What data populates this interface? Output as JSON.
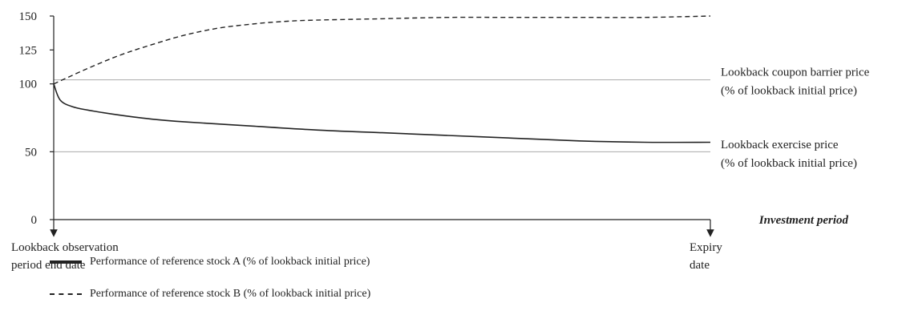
{
  "chart_data": {
    "type": "line",
    "title": "",
    "xlabel": "Investment period",
    "ylabel": "",
    "ylim": [
      0,
      150
    ],
    "yticks": [
      "0",
      "50",
      "100",
      "125",
      "150"
    ],
    "x_range": [
      0,
      1
    ],
    "x_markers": [
      {
        "x": 0,
        "label_lines": [
          "Lookback observation",
          "period end date"
        ]
      },
      {
        "x": 1,
        "label_lines": [
          "Expiry",
          "date"
        ]
      }
    ],
    "reference_lines": [
      {
        "y": 103,
        "label_lines": [
          "Lookback coupon barrier price",
          "(% of lookback initial price)"
        ]
      },
      {
        "y": 50,
        "label_lines": []
      }
    ],
    "end_labels": [
      {
        "y": 56,
        "label_lines": [
          "Lookback exercise price",
          "(% of lookback initial price)"
        ]
      }
    ],
    "series": [
      {
        "name": "Performance of reference stock A (% of lookback initial price)",
        "style": "solid",
        "x": [
          0,
          0.01,
          0.03,
          0.06,
          0.1,
          0.15,
          0.2,
          0.3,
          0.4,
          0.5,
          0.6,
          0.7,
          0.8,
          0.9,
          1.0
        ],
        "values": [
          100,
          88,
          83,
          80,
          77,
          74,
          72,
          69,
          66,
          64,
          62,
          60,
          58,
          57,
          57
        ]
      },
      {
        "name": "Performance of reference stock B (% of lookback initial price)",
        "style": "dashed",
        "x": [
          0,
          0.05,
          0.1,
          0.15,
          0.2,
          0.25,
          0.3,
          0.35,
          0.4,
          0.5,
          0.6,
          0.7,
          0.8,
          0.9,
          1.0
        ],
        "values": [
          100,
          111,
          121,
          129,
          136,
          141,
          144,
          146,
          147,
          148,
          149,
          149,
          149,
          149,
          150
        ]
      }
    ],
    "grid": false,
    "legend_position": "bottom-left"
  }
}
